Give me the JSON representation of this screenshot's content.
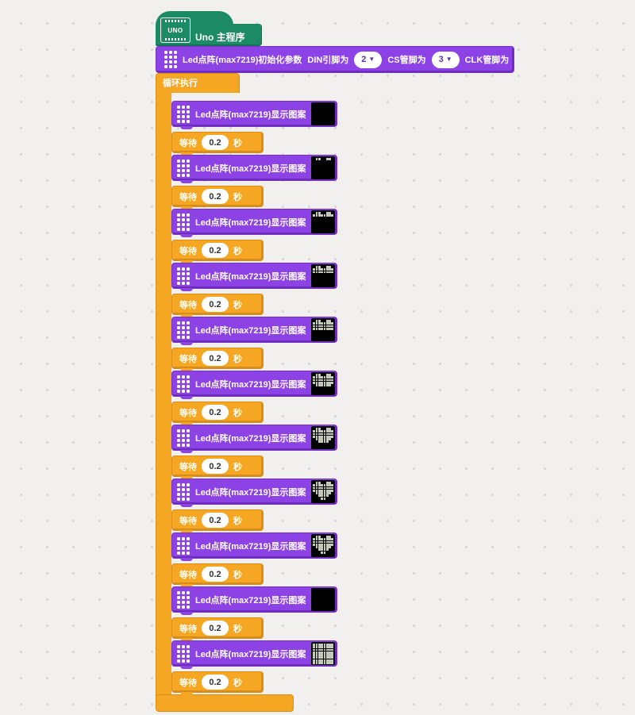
{
  "workspace": {
    "background_color": "#f1f0ee",
    "grid_dot_color": "#d9d6d5"
  },
  "colors": {
    "hat_green": "#1d8a66",
    "block_purple": "#8d42e6",
    "block_orange": "#f5a623",
    "matrix_background": "#000000",
    "matrix_lit_dot": "#c9cdbb",
    "dropdown_text": "#5b2fa8"
  },
  "hat_block": {
    "label": "Uno 主程序",
    "board_text": "UNO"
  },
  "init_block": {
    "label": "Led点阵(max7219)初始化参数",
    "params": [
      {
        "label": "DIN引脚为",
        "value": "2"
      },
      {
        "label": "CS管脚为",
        "value": "3"
      },
      {
        "label": "CLK管脚为",
        "value": "4"
      }
    ]
  },
  "loop_block": {
    "label": "循环执行"
  },
  "display_block": {
    "label": "Led点阵(max7219)显示图案"
  },
  "wait_block": {
    "label_prefix": "等待",
    "value": "0.2",
    "label_suffix": "秒"
  },
  "frames": [
    {
      "name": "frame-1-blank",
      "matrix": [
        "00000000",
        "00000000",
        "00000000",
        "00000000",
        "00000000",
        "00000000",
        "00000000",
        "00000000"
      ]
    },
    {
      "name": "frame-2-heart-row1",
      "matrix": [
        "01100110",
        "00000000",
        "00000000",
        "00000000",
        "00000000",
        "00000000",
        "00000000",
        "00000000"
      ]
    },
    {
      "name": "frame-3-heart-row2",
      "matrix": [
        "01100110",
        "11111111",
        "00000000",
        "00000000",
        "00000000",
        "00000000",
        "00000000",
        "00000000"
      ]
    },
    {
      "name": "frame-4-heart-row3",
      "matrix": [
        "01100110",
        "11111111",
        "11111111",
        "00000000",
        "00000000",
        "00000000",
        "00000000",
        "00000000"
      ]
    },
    {
      "name": "frame-5-heart-row4",
      "matrix": [
        "01100110",
        "11111111",
        "11111111",
        "11111111",
        "00000000",
        "00000000",
        "00000000",
        "00000000"
      ]
    },
    {
      "name": "frame-6-heart-row5",
      "matrix": [
        "01100110",
        "11111111",
        "11111111",
        "11111111",
        "01111110",
        "00000000",
        "00000000",
        "00000000"
      ]
    },
    {
      "name": "frame-7-heart-row6",
      "matrix": [
        "01100110",
        "11111111",
        "11111111",
        "11111111",
        "01111110",
        "00111100",
        "00000000",
        "00000000"
      ]
    },
    {
      "name": "frame-8-heart-full",
      "matrix": [
        "01100110",
        "11111111",
        "11111111",
        "11111111",
        "01111110",
        "00111100",
        "00011000",
        "00000000"
      ]
    },
    {
      "name": "frame-9-heart-full",
      "matrix": [
        "01100110",
        "11111111",
        "11111111",
        "11111111",
        "01111110",
        "00111100",
        "00011000",
        "00000000"
      ]
    },
    {
      "name": "frame-10-blank",
      "matrix": [
        "00000000",
        "00000000",
        "00000000",
        "00000000",
        "00000000",
        "00000000",
        "00000000",
        "00000000"
      ]
    },
    {
      "name": "frame-11-all-on",
      "matrix": [
        "11111111",
        "11111111",
        "11111111",
        "11111111",
        "11111111",
        "11111111",
        "11111111",
        "11111111"
      ]
    }
  ]
}
